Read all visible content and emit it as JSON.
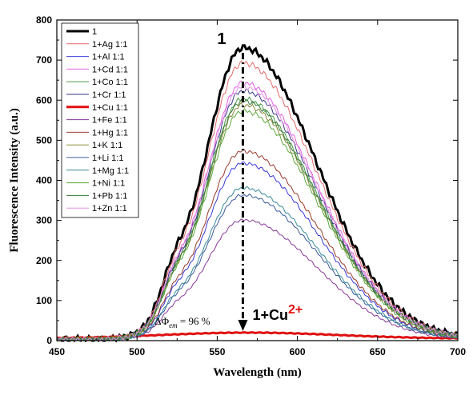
{
  "chart_data": {
    "type": "line",
    "title": "",
    "xlabel": "Wavelength (nm)",
    "ylabel": "Fluorescence Intensity (a.u.)",
    "xlim": [
      450,
      700
    ],
    "ylim": [
      0,
      800
    ],
    "xticks": [
      450,
      500,
      550,
      600,
      650,
      700
    ],
    "yticks": [
      0,
      100,
      200,
      300,
      400,
      500,
      600,
      700,
      800
    ],
    "grid": false,
    "legend_position": "top-left",
    "series": [
      {
        "name": "1",
        "color": "#000000",
        "width": 3,
        "peak": 728
      },
      {
        "name": "1+Ag 1:1",
        "color": "#e36a6a",
        "width": 1,
        "peak": 690
      },
      {
        "name": "1+Al 1:1",
        "color": "#3a3ad8",
        "width": 1,
        "peak": 440
      },
      {
        "name": "1+Cd 1:1",
        "color": "#e060e0",
        "width": 1,
        "peak": 640
      },
      {
        "name": "1+Co 1:1",
        "color": "#4a9a4a",
        "width": 1,
        "peak": 600
      },
      {
        "name": "1+Cr 1:1",
        "color": "#3a3a8a",
        "width": 1,
        "peak": 620
      },
      {
        "name": "1+Cu 1:1",
        "color": "#e01010",
        "width": 3,
        "peak": 20
      },
      {
        "name": "1+Fe 1:1",
        "color": "#8a3a9a",
        "width": 1,
        "peak": 298
      },
      {
        "name": "1+Hg 1:1",
        "color": "#9a3a2a",
        "width": 1,
        "peak": 470
      },
      {
        "name": "1+K 1:1",
        "color": "#8a8a3a",
        "width": 1,
        "peak": 585
      },
      {
        "name": "1+Li 1:1",
        "color": "#3a5a9a",
        "width": 1,
        "peak": 360
      },
      {
        "name": "1+Mg 1:1",
        "color": "#3a8a9a",
        "width": 1,
        "peak": 378
      },
      {
        "name": "1+Ni 1:1",
        "color": "#5aaa3a",
        "width": 1,
        "peak": 570
      },
      {
        "name": "1+Pb 1:1",
        "color": "#3a7a3a",
        "width": 1,
        "peak": 595
      },
      {
        "name": "1+Zn 1:1",
        "color": "#e090e0",
        "width": 1,
        "peak": 630
      }
    ],
    "annotations": {
      "top_label": "1",
      "bottom_label_prefix": "1+Cu",
      "bottom_label_sup": "2+",
      "quench_label": "ΔΦ",
      "quench_sub": "em",
      "quench_value": " = 96 %"
    }
  }
}
